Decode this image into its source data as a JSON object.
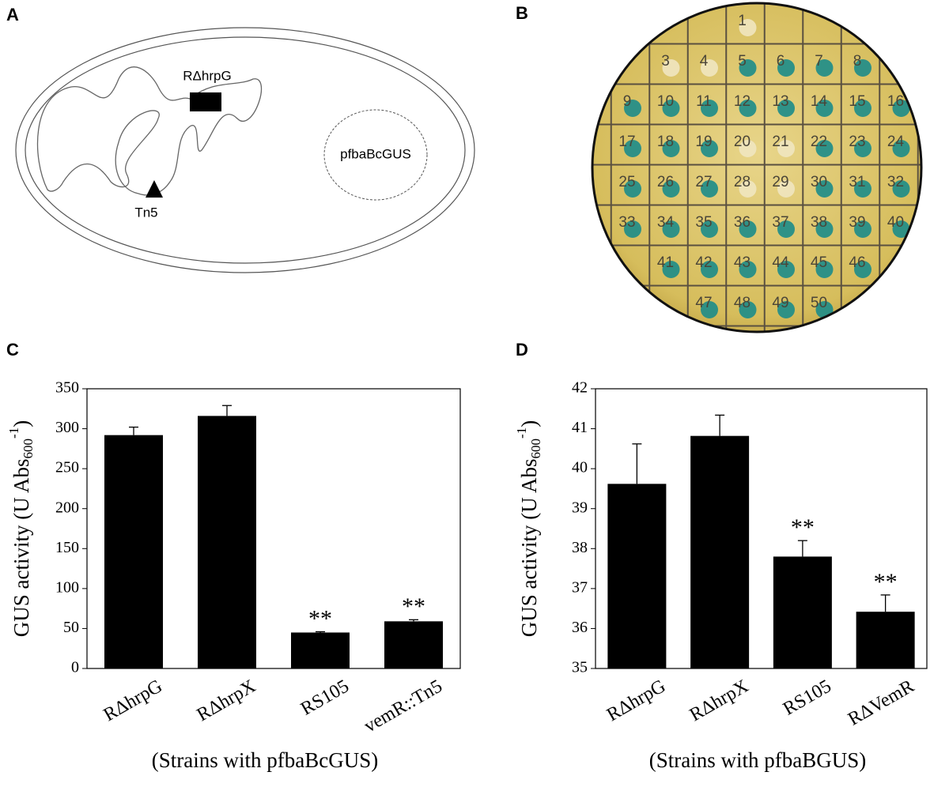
{
  "panel_labels": [
    "A",
    "B",
    "C",
    "D"
  ],
  "diagram": {
    "gene_label": "RΔhrpG",
    "transposon_label": "Tn5",
    "plasmid_label": "pfbaBcGUS"
  },
  "plate": {
    "rows": [
      [
        null,
        null,
        null,
        {
          "label": "1",
          "positive": false
        },
        null,
        null,
        null,
        null
      ],
      [
        null,
        {
          "label": "3",
          "positive": false
        },
        {
          "label": "4",
          "positive": false
        },
        {
          "label": "5",
          "positive": true
        },
        {
          "label": "6",
          "positive": true
        },
        {
          "label": "7",
          "positive": true
        },
        {
          "label": "8",
          "positive": true
        },
        null
      ],
      [
        {
          "label": "9",
          "positive": true
        },
        {
          "label": "10",
          "positive": true
        },
        {
          "label": "11",
          "positive": true
        },
        {
          "label": "12",
          "positive": true
        },
        {
          "label": "13",
          "positive": true
        },
        {
          "label": "14",
          "positive": true
        },
        {
          "label": "15",
          "positive": true
        },
        {
          "label": "16",
          "positive": true
        }
      ],
      [
        {
          "label": "17",
          "positive": true
        },
        {
          "label": "18",
          "positive": true
        },
        {
          "label": "19",
          "positive": true
        },
        {
          "label": "20",
          "positive": false
        },
        {
          "label": "21",
          "positive": false
        },
        {
          "label": "22",
          "positive": true
        },
        {
          "label": "23",
          "positive": true
        },
        {
          "label": "24",
          "positive": true
        }
      ],
      [
        {
          "label": "25",
          "positive": true
        },
        {
          "label": "26",
          "positive": true
        },
        {
          "label": "27",
          "positive": true
        },
        {
          "label": "28",
          "positive": false
        },
        {
          "label": "29",
          "positive": false
        },
        {
          "label": "30",
          "positive": true
        },
        {
          "label": "31",
          "positive": true
        },
        {
          "label": "32",
          "positive": true
        }
      ],
      [
        {
          "label": "33",
          "positive": true
        },
        {
          "label": "34",
          "positive": true
        },
        {
          "label": "35",
          "positive": true
        },
        {
          "label": "36",
          "positive": true
        },
        {
          "label": "37",
          "positive": true
        },
        {
          "label": "38",
          "positive": true
        },
        {
          "label": "39",
          "positive": true
        },
        {
          "label": "40",
          "positive": true
        }
      ],
      [
        null,
        {
          "label": "41",
          "positive": true
        },
        {
          "label": "42",
          "positive": true
        },
        {
          "label": "43",
          "positive": true
        },
        {
          "label": "44",
          "positive": true
        },
        {
          "label": "45",
          "positive": true
        },
        {
          "label": "46",
          "positive": true
        },
        null
      ],
      [
        null,
        null,
        {
          "label": "47",
          "positive": true
        },
        {
          "label": "48",
          "positive": true
        },
        {
          "label": "49",
          "positive": true
        },
        {
          "label": "50",
          "positive": true
        },
        null,
        null
      ]
    ]
  },
  "chart_data": [
    {
      "type": "bar",
      "ylabel": [
        "GUS activity (U Abs",
        "600",
        "-1",
        ")"
      ],
      "xlabel": "(Strains with pfbaBcGUS)",
      "categories": [
        "RΔhrpG",
        "RΔhrpX",
        "RS105",
        "vemR::Tn5"
      ],
      "values": [
        292,
        316,
        45,
        59
      ],
      "errors": [
        10,
        13,
        1,
        2
      ],
      "significance": [
        null,
        null,
        "**",
        "**"
      ],
      "color": "#000000",
      "ylim": [
        0,
        350
      ],
      "yticks": [
        0,
        50,
        100,
        150,
        200,
        250,
        300,
        350
      ]
    },
    {
      "type": "bar",
      "ylabel": [
        "GUS activity (U Abs",
        "600",
        "-1",
        ")"
      ],
      "xlabel": "(Strains with pfbaBGUS)",
      "categories": [
        "RΔhrpG",
        "RΔhrpX",
        "RS105",
        "RΔVemR"
      ],
      "values": [
        39.62,
        40.82,
        37.8,
        36.42
      ],
      "errors": [
        1.0,
        0.52,
        0.4,
        0.42
      ],
      "significance": [
        null,
        null,
        "**",
        "**"
      ],
      "color": "#000000",
      "ylim": [
        35,
        42
      ],
      "yticks": [
        35,
        36,
        37,
        38,
        39,
        40,
        41,
        42
      ]
    }
  ]
}
